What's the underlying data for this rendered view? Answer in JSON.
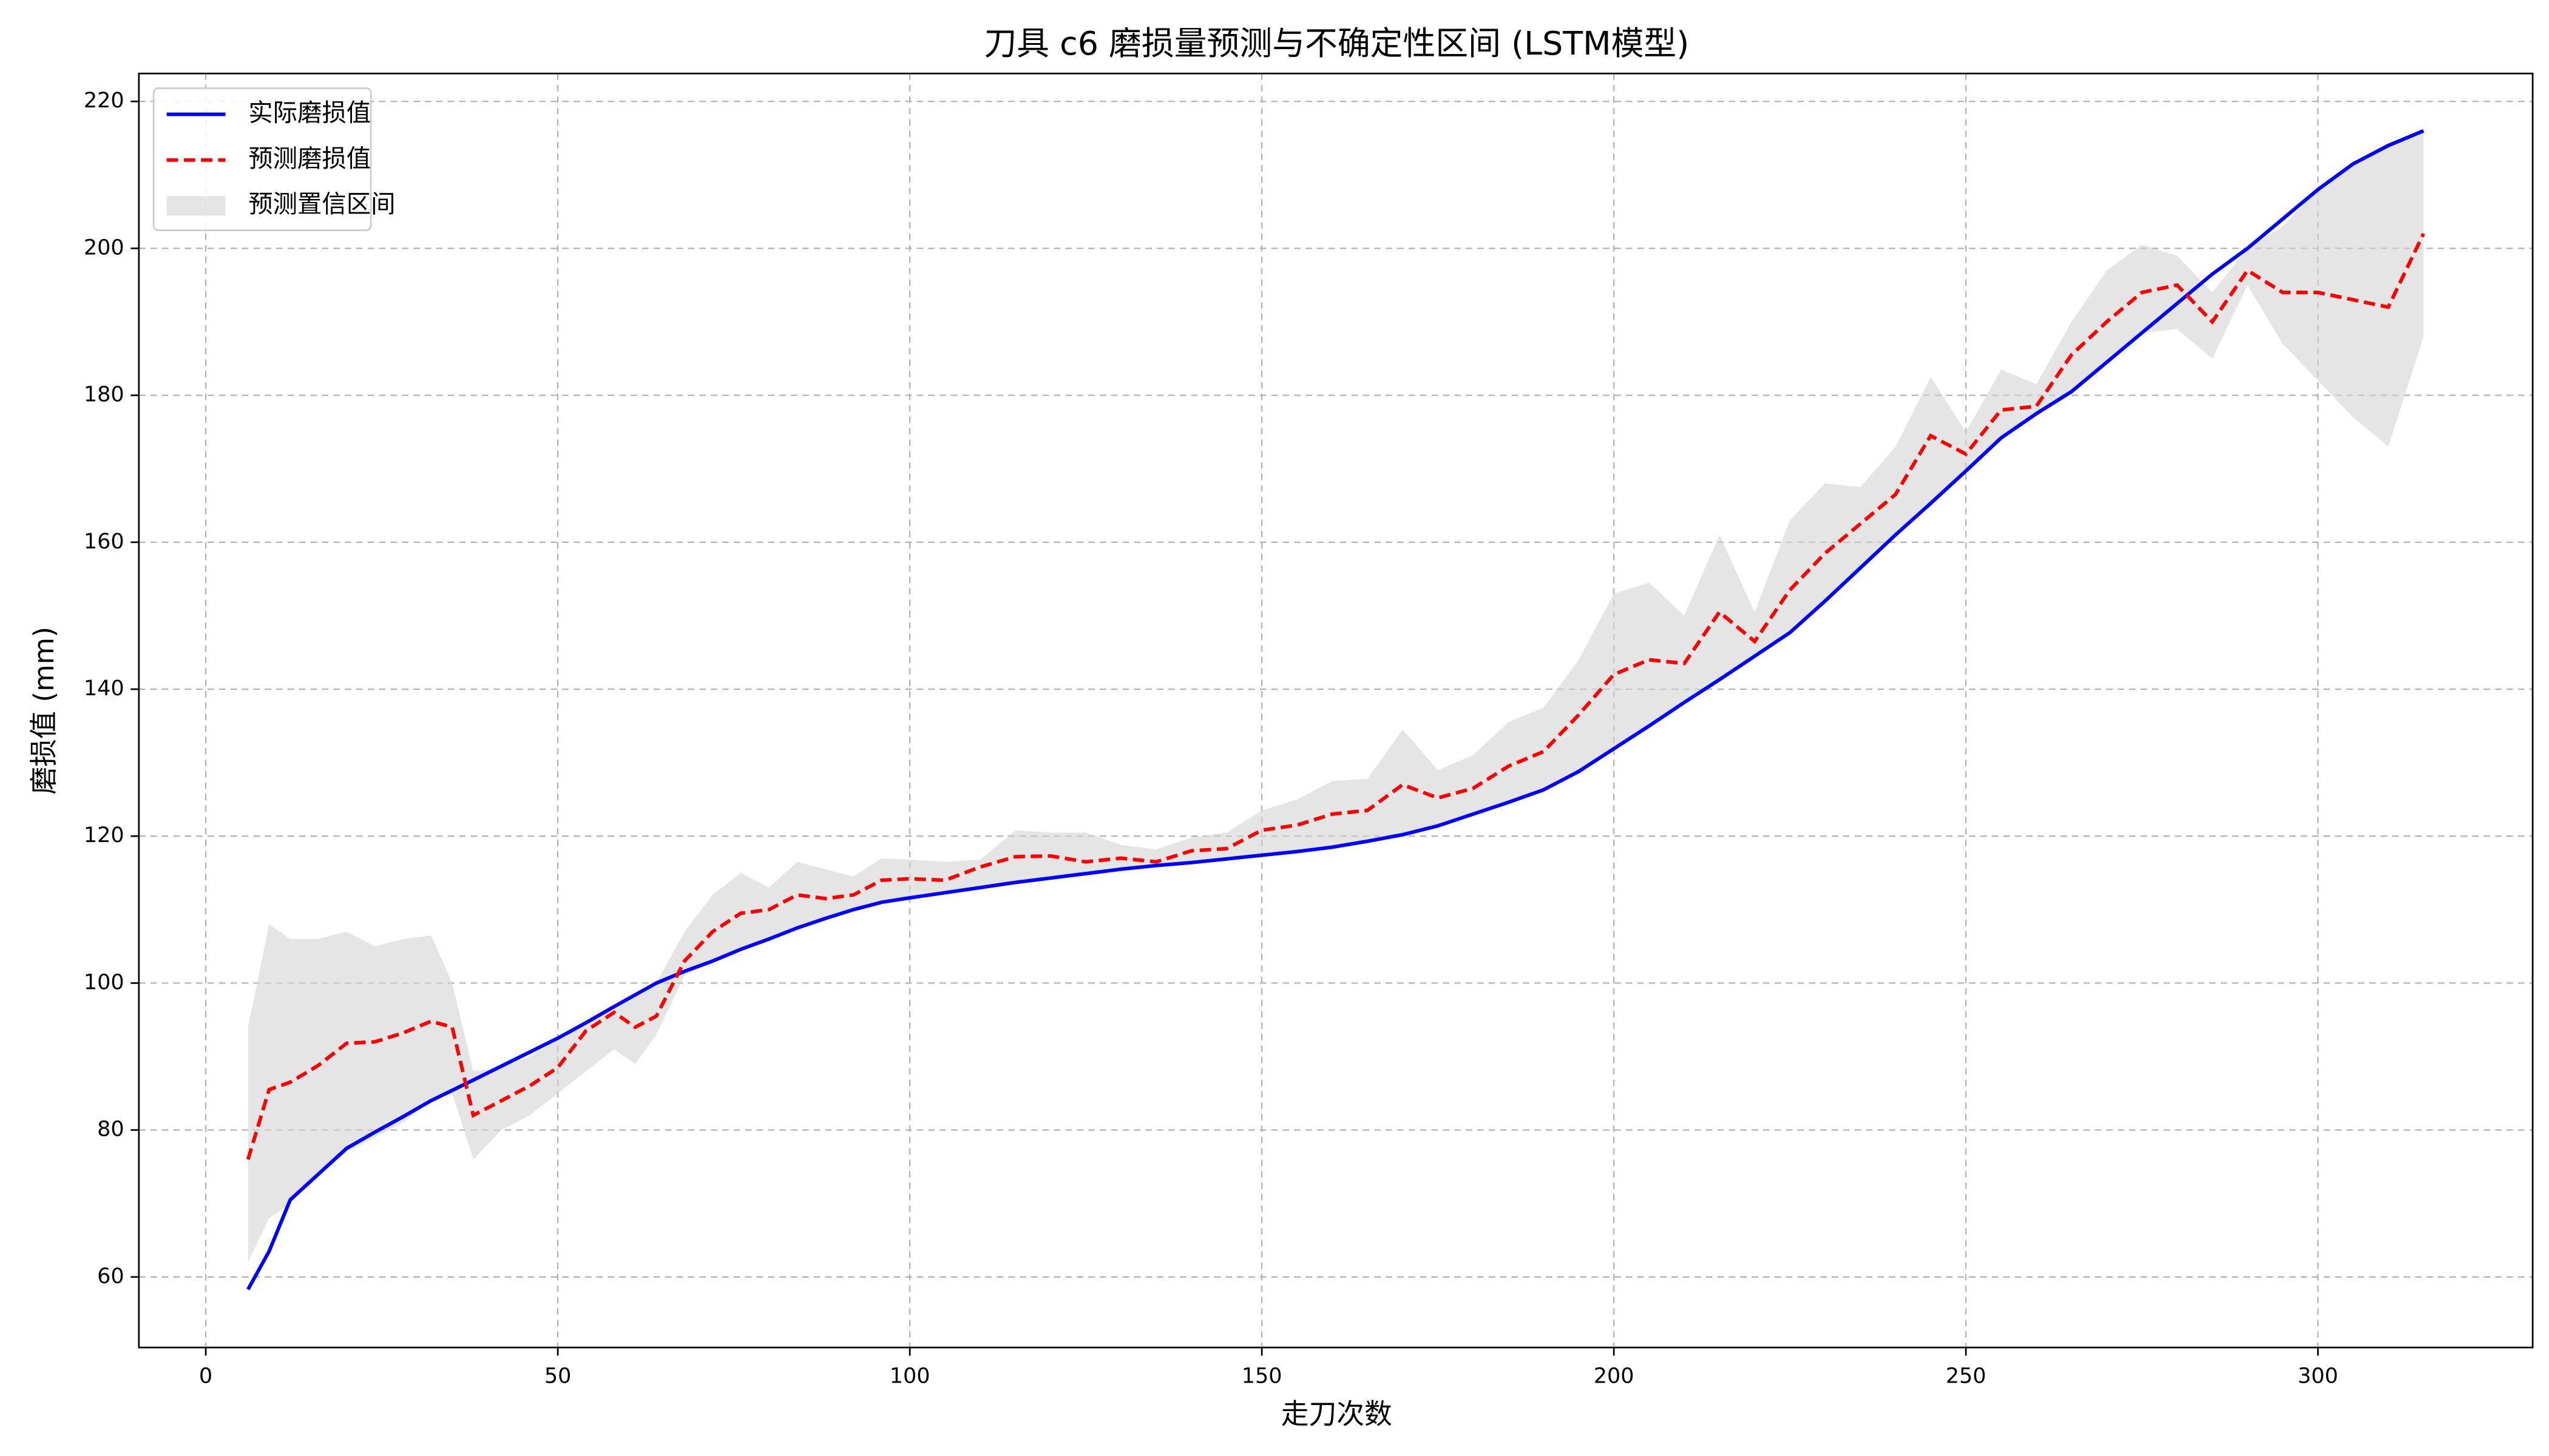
{
  "chart_data": {
    "type": "line",
    "title": "刀具 c6 磨损量预测与不确定性区间 (LSTM模型)",
    "x_label": "走刀次数",
    "y_label": "磨损值 (mm)",
    "x": [
      6,
      9,
      12,
      16,
      20,
      24,
      28,
      32,
      35,
      38,
      42,
      46,
      50,
      54,
      58,
      61,
      64,
      68,
      72,
      76,
      80,
      84,
      88,
      92,
      96,
      100,
      105,
      110,
      115,
      120,
      125,
      130,
      135,
      140,
      145,
      150,
      155,
      160,
      165,
      170,
      175,
      180,
      185,
      190,
      195,
      200,
      205,
      210,
      215,
      220,
      225,
      230,
      235,
      240,
      245,
      250,
      255,
      260,
      265,
      270,
      275,
      280,
      285,
      290,
      295,
      300,
      305,
      310,
      315
    ],
    "series": [
      {
        "name": "实际磨损值",
        "color": "#0000ff",
        "dash": false,
        "values": [
          58.3,
          63.5,
          70.5,
          74,
          77.5,
          79.7,
          81.8,
          84,
          85.4,
          86.8,
          88.7,
          90.6,
          92.5,
          94.6,
          96.8,
          98.4,
          100,
          101.6,
          103,
          104.6,
          106,
          107.5,
          108.8,
          110,
          111,
          111.6,
          112.3,
          113,
          113.7,
          114.3,
          114.9,
          115.5,
          116,
          116.4,
          116.9,
          117.4,
          117.9,
          118.5,
          119.3,
          120.2,
          121.4,
          123,
          124.6,
          126.3,
          128.8,
          131.9,
          135,
          138.2,
          141.3,
          144.5,
          147.7,
          152,
          156.5,
          161,
          165.3,
          169.7,
          174.2,
          177.5,
          180.5,
          184.5,
          188.5,
          192.5,
          196.5,
          200,
          204,
          208,
          211.5,
          214,
          216
        ]
      },
      {
        "name": "预测磨损值",
        "color": "#ff0000",
        "dash": true,
        "values": [
          76,
          85.5,
          86.5,
          88.8,
          91.8,
          92,
          93.2,
          94.8,
          94,
          82,
          84,
          86,
          88.5,
          93.5,
          96,
          94,
          95.5,
          103,
          107,
          109.5,
          110,
          112,
          111.5,
          112,
          114,
          114.2,
          114,
          115.8,
          117.2,
          117.3,
          116.5,
          117,
          116.5,
          118,
          118.3,
          120.8,
          121.5,
          123,
          123.5,
          127,
          125.2,
          126.5,
          129.5,
          131.5,
          136.5,
          142,
          144,
          143.5,
          150.5,
          146.5,
          153.5,
          158.5,
          162.5,
          166.5,
          174.5,
          172,
          178,
          178.5,
          185.5,
          190,
          194,
          195,
          190,
          197,
          194,
          194,
          193,
          192,
          202
        ]
      }
    ],
    "band": {
      "name": "预测置信区间",
      "color": "#d3d3d3",
      "lower": [
        62,
        68,
        70,
        74,
        77,
        79,
        81,
        84,
        85,
        76,
        80,
        82,
        85,
        88,
        91,
        89,
        93,
        101,
        103,
        104.6,
        106,
        107.5,
        108.8,
        110,
        111,
        111.6,
        112.3,
        113,
        113.7,
        114.3,
        114.9,
        115.5,
        116,
        116.4,
        116.9,
        117.4,
        117.9,
        118.5,
        119.3,
        120.2,
        121.4,
        123,
        124.6,
        126.3,
        128.8,
        131.9,
        135,
        138.2,
        141.3,
        144.5,
        147.7,
        152,
        156.5,
        161,
        165.3,
        169.7,
        174.2,
        177.5,
        180.5,
        184.5,
        188.5,
        189,
        185,
        195,
        187,
        182,
        177,
        173,
        188
      ],
      "upper": [
        94,
        108,
        106,
        106,
        107,
        105,
        106,
        106.5,
        100,
        88,
        88.5,
        90,
        92.5,
        94.5,
        96.8,
        98.5,
        100,
        107,
        112,
        115,
        113,
        116.5,
        115.5,
        114.5,
        117,
        116.8,
        116.5,
        116.8,
        120.8,
        120.5,
        120.5,
        118.8,
        118.2,
        119.8,
        120.5,
        123.5,
        125,
        127.5,
        127.8,
        134.5,
        129,
        131,
        135.5,
        137.5,
        144,
        153,
        154.5,
        150,
        161,
        150.5,
        163,
        168,
        167.5,
        173,
        182.5,
        175,
        183.5,
        181.5,
        190,
        197,
        200.5,
        199,
        194,
        200,
        203,
        208,
        211.5,
        214,
        216
      ]
    },
    "xlim": [
      -9.5,
      330.5
    ],
    "ylim": [
      50.4,
      223.8
    ],
    "xticks": [
      0,
      50,
      100,
      150,
      200,
      250,
      300
    ],
    "yticks": [
      60,
      80,
      100,
      120,
      140,
      160,
      180,
      200,
      220
    ],
    "grid": true,
    "legend": "upper-left"
  }
}
